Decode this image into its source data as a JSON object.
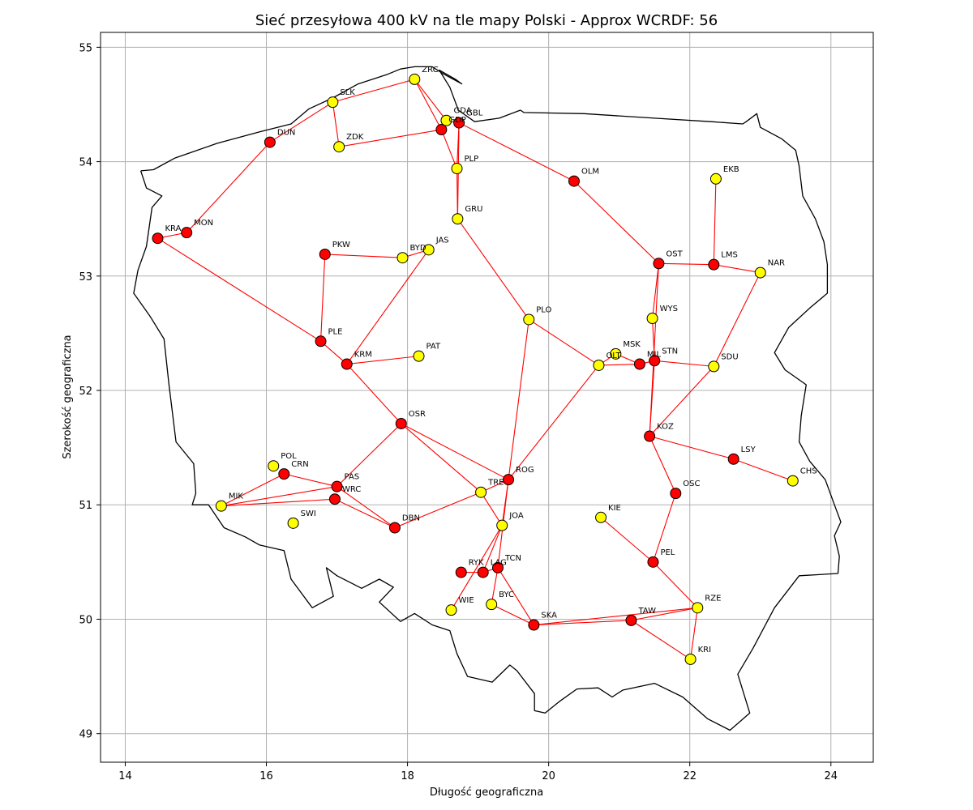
{
  "chart_data": {
    "type": "scatter",
    "title": "Sieć przesyłowa 400 kV na tle mapy Polski - Approx WCRDF: 56",
    "xlabel": "Długość geograficzna",
    "ylabel": "Szerokość geograficzna",
    "xlim": [
      13.65,
      24.6
    ],
    "ylim": [
      48.75,
      55.13
    ],
    "xticks": [
      14,
      16,
      18,
      20,
      22,
      24
    ],
    "yticks": [
      49,
      50,
      51,
      52,
      53,
      54,
      55
    ],
    "grid": true,
    "colors": {
      "red": "#ff0000",
      "yellow": "#ffff00",
      "edge": "#ff0000",
      "border": "#000000"
    },
    "nodes": [
      {
        "id": "ZRC",
        "lon": 18.1,
        "lat": 54.72,
        "color": "yellow"
      },
      {
        "id": "SLK",
        "lon": 16.94,
        "lat": 54.52,
        "color": "yellow"
      },
      {
        "id": "DUN",
        "lon": 16.05,
        "lat": 54.17,
        "color": "red"
      },
      {
        "id": "ZDK",
        "lon": 17.03,
        "lat": 54.13,
        "color": "yellow"
      },
      {
        "id": "GDA",
        "lon": 18.55,
        "lat": 54.36,
        "color": "yellow"
      },
      {
        "id": "GBL",
        "lon": 18.73,
        "lat": 54.34,
        "color": "red"
      },
      {
        "id": "GDP",
        "lon": 18.48,
        "lat": 54.28,
        "color": "red"
      },
      {
        "id": "PLP",
        "lon": 18.7,
        "lat": 53.94,
        "color": "yellow"
      },
      {
        "id": "OLM",
        "lon": 20.36,
        "lat": 53.83,
        "color": "red"
      },
      {
        "id": "EKB",
        "lon": 22.37,
        "lat": 53.85,
        "color": "yellow"
      },
      {
        "id": "KRA",
        "lon": 14.46,
        "lat": 53.33,
        "color": "red"
      },
      {
        "id": "MON",
        "lon": 14.87,
        "lat": 53.38,
        "color": "red"
      },
      {
        "id": "GRU",
        "lon": 18.71,
        "lat": 53.5,
        "color": "yellow"
      },
      {
        "id": "PKW",
        "lon": 16.83,
        "lat": 53.19,
        "color": "red"
      },
      {
        "id": "BYD",
        "lon": 17.93,
        "lat": 53.16,
        "color": "yellow"
      },
      {
        "id": "JAS",
        "lon": 18.3,
        "lat": 53.23,
        "color": "yellow"
      },
      {
        "id": "OST",
        "lon": 21.56,
        "lat": 53.11,
        "color": "red"
      },
      {
        "id": "LMS",
        "lon": 22.34,
        "lat": 53.1,
        "color": "red"
      },
      {
        "id": "NAR",
        "lon": 23.0,
        "lat": 53.03,
        "color": "yellow"
      },
      {
        "id": "WYS",
        "lon": 21.47,
        "lat": 52.63,
        "color": "yellow"
      },
      {
        "id": "PLO",
        "lon": 19.72,
        "lat": 52.62,
        "color": "yellow"
      },
      {
        "id": "PLE",
        "lon": 16.77,
        "lat": 52.43,
        "color": "red"
      },
      {
        "id": "KRM",
        "lon": 17.14,
        "lat": 52.23,
        "color": "red"
      },
      {
        "id": "PAT",
        "lon": 18.16,
        "lat": 52.3,
        "color": "yellow"
      },
      {
        "id": "MSK",
        "lon": 20.95,
        "lat": 52.32,
        "color": "yellow"
      },
      {
        "id": "OLT",
        "lon": 20.71,
        "lat": 52.22,
        "color": "yellow"
      },
      {
        "id": "MIL",
        "lon": 21.29,
        "lat": 52.23,
        "color": "red"
      },
      {
        "id": "STN",
        "lon": 21.5,
        "lat": 52.26,
        "color": "red"
      },
      {
        "id": "SDU",
        "lon": 22.34,
        "lat": 52.21,
        "color": "yellow"
      },
      {
        "id": "OSR",
        "lon": 17.91,
        "lat": 51.71,
        "color": "red"
      },
      {
        "id": "KOZ",
        "lon": 21.43,
        "lat": 51.6,
        "color": "red"
      },
      {
        "id": "LSY",
        "lon": 22.62,
        "lat": 51.4,
        "color": "red"
      },
      {
        "id": "CHS",
        "lon": 23.46,
        "lat": 51.21,
        "color": "yellow"
      },
      {
        "id": "POL",
        "lon": 16.1,
        "lat": 51.34,
        "color": "yellow"
      },
      {
        "id": "CRN",
        "lon": 16.25,
        "lat": 51.27,
        "color": "red"
      },
      {
        "id": "PAS",
        "lon": 17.0,
        "lat": 51.16,
        "color": "red"
      },
      {
        "id": "WRC",
        "lon": 16.97,
        "lat": 51.05,
        "color": "red"
      },
      {
        "id": "ROG",
        "lon": 19.43,
        "lat": 51.22,
        "color": "red"
      },
      {
        "id": "TRE",
        "lon": 19.04,
        "lat": 51.11,
        "color": "yellow"
      },
      {
        "id": "OSC",
        "lon": 21.8,
        "lat": 51.1,
        "color": "red"
      },
      {
        "id": "MIK",
        "lon": 15.36,
        "lat": 50.99,
        "color": "yellow"
      },
      {
        "id": "SWI",
        "lon": 16.38,
        "lat": 50.84,
        "color": "yellow"
      },
      {
        "id": "KIE",
        "lon": 20.74,
        "lat": 50.89,
        "color": "yellow"
      },
      {
        "id": "DBN",
        "lon": 17.82,
        "lat": 50.8,
        "color": "red"
      },
      {
        "id": "JOA",
        "lon": 19.34,
        "lat": 50.82,
        "color": "yellow"
      },
      {
        "id": "PEL",
        "lon": 21.48,
        "lat": 50.5,
        "color": "red"
      },
      {
        "id": "RYK",
        "lon": 18.76,
        "lat": 50.41,
        "color": "red"
      },
      {
        "id": "LAG",
        "lon": 19.07,
        "lat": 50.41,
        "color": "red"
      },
      {
        "id": "TCN",
        "lon": 19.28,
        "lat": 50.45,
        "color": "red"
      },
      {
        "id": "BYC",
        "lon": 19.19,
        "lat": 50.13,
        "color": "yellow"
      },
      {
        "id": "WIE",
        "lon": 18.62,
        "lat": 50.08,
        "color": "yellow"
      },
      {
        "id": "RZE",
        "lon": 22.11,
        "lat": 50.1,
        "color": "yellow"
      },
      {
        "id": "SKA",
        "lon": 19.79,
        "lat": 49.95,
        "color": "red"
      },
      {
        "id": "TAW",
        "lon": 21.17,
        "lat": 49.99,
        "color": "red"
      },
      {
        "id": "KRI",
        "lon": 22.01,
        "lat": 49.65,
        "color": "yellow"
      }
    ],
    "edges": [
      [
        "ZRC",
        "SLK"
      ],
      [
        "SLK",
        "ZDK"
      ],
      [
        "ZRC",
        "GDA"
      ],
      [
        "ZRC",
        "GDP"
      ],
      [
        "ZDK",
        "GDP"
      ],
      [
        "GDP",
        "PLP"
      ],
      [
        "GBL",
        "PLP"
      ],
      [
        "GBL",
        "OLM"
      ],
      [
        "PLP",
        "GRU"
      ],
      [
        "GBL",
        "GRU"
      ],
      [
        "DUN",
        "SLK"
      ],
      [
        "DUN",
        "MON"
      ],
      [
        "KRA",
        "MON"
      ],
      [
        "KRA",
        "PLE"
      ],
      [
        "PKW",
        "PLE"
      ],
      [
        "PKW",
        "BYD"
      ],
      [
        "BYD",
        "JAS"
      ],
      [
        "JAS",
        "KRM"
      ],
      [
        "PLE",
        "KRM"
      ],
      [
        "KRM",
        "PAT"
      ],
      [
        "KRM",
        "OSR"
      ],
      [
        "GRU",
        "PLO"
      ],
      [
        "PLO",
        "OLT"
      ],
      [
        "PLO",
        "ROG"
      ],
      [
        "OLM",
        "OST"
      ],
      [
        "OST",
        "LMS"
      ],
      [
        "LMS",
        "EKB"
      ],
      [
        "LMS",
        "NAR"
      ],
      [
        "NAR",
        "SDU"
      ],
      [
        "OST",
        "WYS"
      ],
      [
        "OST",
        "KOZ"
      ],
      [
        "WYS",
        "STN"
      ],
      [
        "OLT",
        "MSK"
      ],
      [
        "MSK",
        "MIL"
      ],
      [
        "OLT",
        "MIL"
      ],
      [
        "MIL",
        "STN"
      ],
      [
        "STN",
        "SDU"
      ],
      [
        "STN",
        "KOZ"
      ],
      [
        "SDU",
        "KOZ"
      ],
      [
        "KOZ",
        "LSY"
      ],
      [
        "LSY",
        "CHS"
      ],
      [
        "KOZ",
        "OSC"
      ],
      [
        "OSC",
        "PEL"
      ],
      [
        "PEL",
        "KIE"
      ],
      [
        "PEL",
        "RZE"
      ],
      [
        "RZE",
        "TAW"
      ],
      [
        "RZE",
        "KRI"
      ],
      [
        "TAW",
        "KRI"
      ],
      [
        "TAW",
        "SKA"
      ],
      [
        "SKA",
        "RZE"
      ],
      [
        "OLT",
        "ROG"
      ],
      [
        "OSR",
        "PAS"
      ],
      [
        "OSR",
        "TRE"
      ],
      [
        "OSR",
        "ROG"
      ],
      [
        "TRE",
        "ROG"
      ],
      [
        "TRE",
        "DBN"
      ],
      [
        "TRE",
        "JOA"
      ],
      [
        "ROG",
        "JOA"
      ],
      [
        "ROG",
        "TCN"
      ],
      [
        "JOA",
        "WIE"
      ],
      [
        "JOA",
        "LAG"
      ],
      [
        "TCN",
        "LAG"
      ],
      [
        "LAG",
        "RYK"
      ],
      [
        "TCN",
        "BYC"
      ],
      [
        "TCN",
        "SKA"
      ],
      [
        "BYC",
        "SKA"
      ],
      [
        "CRN",
        "PAS"
      ],
      [
        "CRN",
        "MIK"
      ],
      [
        "MIK",
        "PAS"
      ],
      [
        "MIK",
        "WRC"
      ],
      [
        "PAS",
        "DBN"
      ],
      [
        "WRC",
        "DBN"
      ]
    ],
    "border": [
      [
        14.22,
        53.92
      ],
      [
        14.4,
        53.93
      ],
      [
        14.7,
        54.03
      ],
      [
        15.3,
        54.16
      ],
      [
        15.9,
        54.26
      ],
      [
        16.35,
        54.33
      ],
      [
        16.6,
        54.46
      ],
      [
        16.95,
        54.56
      ],
      [
        17.3,
        54.68
      ],
      [
        17.7,
        54.76
      ],
      [
        17.9,
        54.81
      ],
      [
        18.1,
        54.83
      ],
      [
        18.35,
        54.83
      ],
      [
        18.5,
        54.77
      ],
      [
        18.77,
        54.68
      ],
      [
        18.68,
        54.72
      ],
      [
        18.45,
        54.8
      ],
      [
        18.6,
        54.65
      ],
      [
        18.72,
        54.45
      ],
      [
        18.95,
        54.35
      ],
      [
        19.3,
        54.38
      ],
      [
        19.6,
        54.45
      ],
      [
        19.65,
        54.43
      ],
      [
        20.5,
        54.42
      ],
      [
        21.5,
        54.38
      ],
      [
        22.3,
        54.35
      ],
      [
        22.75,
        54.33
      ],
      [
        22.8,
        54.35
      ],
      [
        22.95,
        54.42
      ],
      [
        23.0,
        54.3
      ],
      [
        23.3,
        54.2
      ],
      [
        23.5,
        54.1
      ],
      [
        23.55,
        53.96
      ],
      [
        23.6,
        53.7
      ],
      [
        23.78,
        53.5
      ],
      [
        23.9,
        53.3
      ],
      [
        23.95,
        53.1
      ],
      [
        23.95,
        52.85
      ],
      [
        23.7,
        52.72
      ],
      [
        23.4,
        52.55
      ],
      [
        23.2,
        52.33
      ],
      [
        23.35,
        52.18
      ],
      [
        23.65,
        52.05
      ],
      [
        23.58,
        51.78
      ],
      [
        23.55,
        51.55
      ],
      [
        23.7,
        51.38
      ],
      [
        23.92,
        51.22
      ],
      [
        24.05,
        51.0
      ],
      [
        24.14,
        50.85
      ],
      [
        24.05,
        50.73
      ],
      [
        24.12,
        50.55
      ],
      [
        24.1,
        50.4
      ],
      [
        23.55,
        50.38
      ],
      [
        23.2,
        50.1
      ],
      [
        22.9,
        49.75
      ],
      [
        22.68,
        49.52
      ],
      [
        22.85,
        49.18
      ],
      [
        22.57,
        49.03
      ],
      [
        22.25,
        49.13
      ],
      [
        21.9,
        49.32
      ],
      [
        21.5,
        49.44
      ],
      [
        21.05,
        49.38
      ],
      [
        20.9,
        49.32
      ],
      [
        20.7,
        49.4
      ],
      [
        20.4,
        49.39
      ],
      [
        20.15,
        49.28
      ],
      [
        19.95,
        49.18
      ],
      [
        19.8,
        49.2
      ],
      [
        19.8,
        49.35
      ],
      [
        19.55,
        49.55
      ],
      [
        19.45,
        49.6
      ],
      [
        19.2,
        49.45
      ],
      [
        18.85,
        49.5
      ],
      [
        18.7,
        49.7
      ],
      [
        18.6,
        49.9
      ],
      [
        18.35,
        49.95
      ],
      [
        18.1,
        50.05
      ],
      [
        17.9,
        49.98
      ],
      [
        17.6,
        50.15
      ],
      [
        17.8,
        50.28
      ],
      [
        17.6,
        50.35
      ],
      [
        17.35,
        50.27
      ],
      [
        17.0,
        50.38
      ],
      [
        16.85,
        50.45
      ],
      [
        16.95,
        50.2
      ],
      [
        16.65,
        50.1
      ],
      [
        16.35,
        50.35
      ],
      [
        16.25,
        50.6
      ],
      [
        15.9,
        50.65
      ],
      [
        15.7,
        50.72
      ],
      [
        15.4,
        50.8
      ],
      [
        15.18,
        51.0
      ],
      [
        14.95,
        51.0
      ],
      [
        15.0,
        51.1
      ],
      [
        14.97,
        51.36
      ],
      [
        14.72,
        51.55
      ],
      [
        14.62,
        52.05
      ],
      [
        14.55,
        52.45
      ],
      [
        14.35,
        52.65
      ],
      [
        14.12,
        52.85
      ],
      [
        14.18,
        53.05
      ],
      [
        14.3,
        53.26
      ],
      [
        14.38,
        53.6
      ],
      [
        14.52,
        53.7
      ],
      [
        14.3,
        53.77
      ],
      [
        14.22,
        53.92
      ]
    ]
  }
}
